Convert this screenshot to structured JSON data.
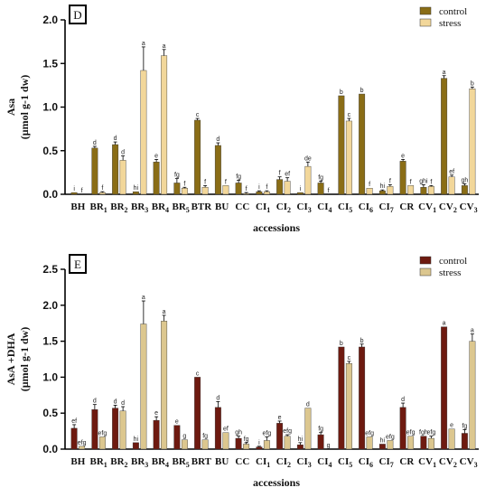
{
  "colors": {
    "top_control": "#8a6d16",
    "top_stress": "#f2d79a",
    "bottom_control": "#6e1a10",
    "bottom_stress": "#dcc78f"
  },
  "chart_data": [
    {
      "type": "bar",
      "panel_letter": "D",
      "ylabel": [
        "Asa",
        "(µmol g-1 dw)"
      ],
      "xlabel": "accessions",
      "ylim": [
        0,
        2.0
      ],
      "yticks": [
        "0.0",
        "0.5",
        "1.0",
        "1.5",
        "2.0"
      ],
      "legend_position": "top-right",
      "categories": [
        "BH",
        "BR1",
        "BR2",
        "BR3",
        "BR4",
        "BR5",
        "BTR",
        "BU",
        "CC",
        "CI1",
        "CI2",
        "CI3",
        "CI4",
        "CI5",
        "CI6",
        "CI7",
        "CR",
        "CV1",
        "CV2",
        "CV3"
      ],
      "series": [
        {
          "name": "control",
          "values": [
            0.02,
            0.53,
            0.57,
            0.03,
            0.37,
            0.13,
            0.85,
            0.56,
            0.13,
            0.03,
            0.17,
            0.02,
            0.13,
            1.13,
            1.15,
            0.04,
            0.38,
            0.08,
            1.33,
            0.1
          ],
          "errors": [
            0.0,
            0.02,
            0.03,
            0.0,
            0.03,
            0.05,
            0.02,
            0.03,
            0.03,
            0.01,
            0.03,
            0.0,
            0.02,
            0.0,
            0.0,
            0.01,
            0.02,
            0.03,
            0.03,
            0.02
          ],
          "sig": [
            "i",
            "d",
            "d",
            "hi",
            "e",
            "fg",
            "c",
            "d",
            "fg",
            "i",
            "f",
            "i",
            "fg",
            "b",
            "b",
            "hi",
            "e",
            "ghi",
            "a",
            "gh"
          ]
        },
        {
          "name": "stress",
          "values": [
            0.0,
            0.02,
            0.39,
            1.42,
            1.59,
            0.07,
            0.08,
            0.1,
            0.01,
            0.03,
            0.15,
            0.32,
            0.0,
            0.84,
            0.07,
            0.09,
            0.1,
            0.09,
            0.2,
            1.21
          ],
          "errors": [
            0.0,
            0.01,
            0.05,
            0.27,
            0.07,
            0.01,
            0.02,
            0.0,
            0.01,
            0.01,
            0.04,
            0.05,
            0.0,
            0.03,
            0.0,
            0.02,
            0.0,
            0.01,
            0.02,
            0.02
          ],
          "sig": [
            "f",
            "f",
            "d",
            "a",
            "a",
            "f",
            "f",
            "f",
            "f",
            "f",
            "ef",
            "de",
            "f",
            "c",
            "f",
            "f",
            "f",
            "f",
            "ef",
            "b"
          ]
        }
      ]
    },
    {
      "type": "bar",
      "panel_letter": "E",
      "ylabel": [
        "AsA +DHA",
        "(µmol g-1 dw)"
      ],
      "xlabel": "accessions",
      "ylim": [
        0,
        2.5
      ],
      "yticks": [
        "0.0",
        "0.5",
        "1.0",
        "1.5",
        "2.0",
        "2.5"
      ],
      "legend_position": "top-right",
      "categories": [
        "BH",
        "BR1",
        "BR2",
        "BR3",
        "BR4",
        "BR5",
        "BRT",
        "BU",
        "CC",
        "CI1",
        "CI2",
        "CI3",
        "CI4",
        "CI5",
        "CI6",
        "CI7",
        "CR",
        "CV1",
        "CV2",
        "CV3"
      ],
      "series": [
        {
          "name": "control",
          "values": [
            0.29,
            0.55,
            0.57,
            0.09,
            0.4,
            0.33,
            1.0,
            0.58,
            0.15,
            0.03,
            0.36,
            0.06,
            0.2,
            1.42,
            1.42,
            0.07,
            0.58,
            0.18,
            1.7,
            0.22
          ],
          "errors": [
            0.05,
            0.07,
            0.04,
            0.0,
            0.05,
            0.0,
            0.0,
            0.08,
            0.03,
            0.01,
            0.03,
            0.03,
            0.03,
            0.0,
            0.04,
            0.0,
            0.06,
            0.0,
            0.0,
            0.05
          ],
          "sig": [
            "ef",
            "d",
            "d",
            "hi",
            "e",
            "e",
            "c",
            "d",
            "gh",
            "i",
            "e",
            "hi",
            "fg",
            "b",
            "b",
            "hi",
            "d",
            "fgh",
            "a",
            "fg"
          ]
        },
        {
          "name": "stress",
          "values": [
            0.04,
            0.17,
            0.53,
            1.74,
            1.78,
            0.13,
            0.13,
            0.23,
            0.07,
            0.12,
            0.18,
            0.57,
            0.0,
            1.19,
            0.17,
            0.12,
            0.18,
            0.15,
            0.28,
            1.5
          ],
          "errors": [
            0.0,
            0.0,
            0.06,
            0.32,
            0.08,
            0.0,
            0.0,
            0.0,
            0.02,
            0.05,
            0.02,
            0.0,
            0.0,
            0.03,
            0.0,
            0.0,
            0.0,
            0.03,
            0.0,
            0.1
          ],
          "sig": [
            "efg",
            "efg",
            "d",
            "a",
            "a",
            "g",
            "fg",
            "ef",
            "fg",
            "efg",
            "efg",
            "d",
            "g",
            "c",
            "efg",
            "efg",
            "efg",
            "efg",
            "e",
            "a"
          ]
        }
      ]
    }
  ]
}
